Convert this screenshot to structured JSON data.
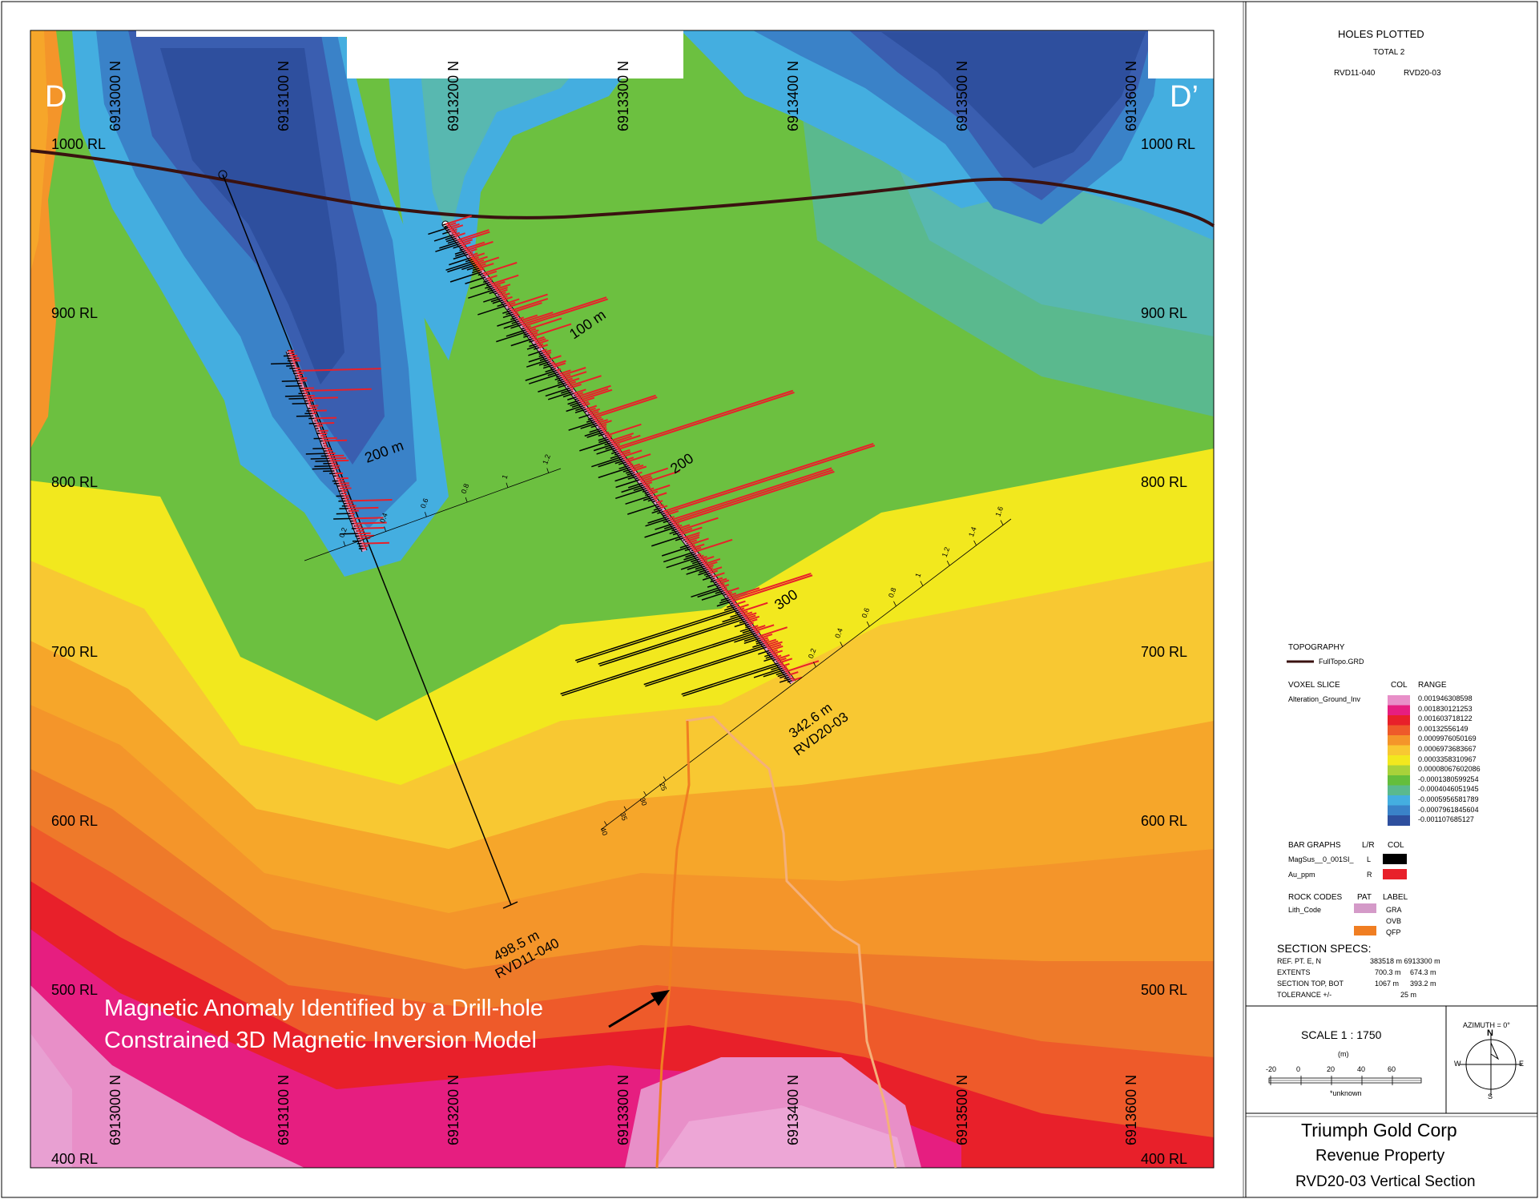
{
  "section": {
    "left_label": "D",
    "right_label": "D’",
    "northings_top": [
      "6913000 N",
      "6913100 N",
      "6913200 N",
      "6913300 N",
      "6913400 N",
      "6913500 N",
      "6913600 N"
    ],
    "northings_bottom": [
      "6913000 N",
      "6913100 N",
      "6913200 N",
      "6913300 N",
      "6913400 N",
      "6913500 N",
      "6913600 N"
    ],
    "rl_left": [
      "1000 RL",
      "900 RL",
      "800 RL",
      "700 RL",
      "600 RL",
      "500 RL",
      "400 RL"
    ],
    "rl_right": [
      "1000 RL",
      "900 RL",
      "800 RL",
      "700 RL",
      "600 RL",
      "500 RL",
      "400 RL"
    ],
    "annotation_line1": "Magnetic Anomaly Identified by a Drill-hole",
    "annotation_line2": "Constrained 3D Magnetic Inversion Model"
  },
  "holes": {
    "rvd11": {
      "depth": "498.5 m",
      "name": "RVD11-040",
      "mark": "200 m"
    },
    "rvd20": {
      "depth": "342.6 m",
      "name": "RVD20-03",
      "marks": [
        "100 m",
        "200",
        "300"
      ]
    },
    "scale_small": [
      "0.2",
      "0.4",
      "0.6",
      "0.8",
      "1",
      "1.2"
    ],
    "scale_large": [
      "0.2",
      "0.4",
      "0.6",
      "0.8",
      "1",
      "1.2",
      "1.4",
      "1.6"
    ],
    "scale_mag": [
      "25",
      "30",
      "35",
      "40"
    ]
  },
  "panel": {
    "holes_plotted": "HOLES PLOTTED",
    "total": "TOTAL 2",
    "hole1": "RVD11-040",
    "hole2": "RVD20-03",
    "topography": "TOPOGRAPHY",
    "topo_item": "FullTopo.GRD",
    "voxel": "VOXEL SLICE",
    "col": "COL",
    "range": "RANGE",
    "voxel_item": "Alteration_Ground_Inv",
    "ranges": [
      "0.001946308598",
      "0.001830121253",
      "0.001603718122",
      "0.00132556149",
      "0.000997605016​9",
      "0.0006973683667",
      "0.0003358310967",
      "0.00008067602086",
      "-0.0001380599254",
      "-0.0004046051945",
      "-0.0005956581789",
      "-0.0007961845604",
      "-0.001107685127"
    ],
    "ramp_colors": [
      "#e88fc8",
      "#e61e80",
      "#e8202a",
      "#ee5a2a",
      "#f4952a",
      "#f8c832",
      "#f2e81e",
      "#a8d23a",
      "#64be3c",
      "#5ab98e",
      "#44aee0",
      "#3a82c8",
      "#2e4f9e"
    ],
    "bar_graphs": "BAR GRAPHS",
    "lr": "L/R",
    "bar1": "MagSus__0_001SI_",
    "bar1_side": "L",
    "bar2": "Au_ppm",
    "bar2_side": "R",
    "rock_codes": "ROCK CODES",
    "pat": "PAT",
    "label": "LABEL",
    "lith": "Lith_Code",
    "rock1": "GRA",
    "rock2": "OVB",
    "rock3": "QFP",
    "specs_title": "SECTION  SPECS:",
    "spec1_k": "REF. PT.  E, N",
    "spec1_v": "383518 m 6913300 m",
    "spec2_k": "EXTENTS",
    "spec2_v1": "700.3 m",
    "spec2_v2": "674.3 m",
    "spec3_k": "SECTION TOP, BOT",
    "spec3_v1": "1067 m",
    "spec3_v2": "393.2 m",
    "spec4_k": "TOLERANCE  +/-",
    "spec4_v": "25 m",
    "scale_title": "SCALE  1 : 1750",
    "scale_unit": "(m)",
    "scale_ticks": [
      "-20",
      "0",
      "20",
      "40",
      "60"
    ],
    "unknown": "*unknown",
    "azimuth": "AZIMUTH = 0°",
    "compass_n": "N",
    "compass_s": "S",
    "compass_e": "E",
    "compass_w": "W",
    "company": "Triumph Gold Corp",
    "property": "Revenue Property",
    "section_name": "RVD20-03 Vertical Section"
  },
  "colors": {
    "topo_line": "#3a1210",
    "gra": "#d49ac8",
    "qfp": "#f07e22",
    "au_bar": "#e8202a",
    "mag_bar": "#000000"
  }
}
